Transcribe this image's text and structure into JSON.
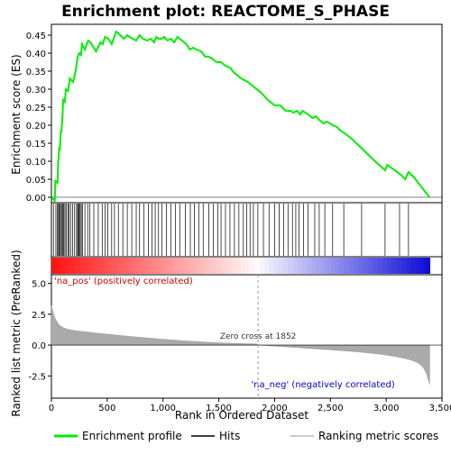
{
  "chart_data": {
    "type": "line",
    "title": "Enrichment plot: REACTOME_S_PHASE",
    "xlabel": "Rank in Ordered Dataset",
    "ylabel_top": "Enrichment score (ES)",
    "ylabel_bottom": "Ranked list metric (PreRanked)",
    "x_ticks": [
      "0",
      "500",
      "1,000",
      "1,500",
      "2,000",
      "2,500",
      "3,000",
      "3,500"
    ],
    "x_tick_values": [
      0,
      500,
      1000,
      1500,
      2000,
      2500,
      3000,
      3500
    ],
    "xlim": [
      0,
      3500
    ],
    "es_yticks": [
      "0.00",
      "0.05",
      "0.10",
      "0.15",
      "0.20",
      "0.25",
      "0.30",
      "0.35",
      "0.40",
      "0.45"
    ],
    "es_ytick_values": [
      0,
      0.05,
      0.1,
      0.15,
      0.2,
      0.25,
      0.3,
      0.35,
      0.4,
      0.45
    ],
    "es_ylim": [
      -0.015,
      0.48
    ],
    "rank_yticks": [
      "5.0",
      "2.5",
      "0.0",
      "-2.5"
    ],
    "rank_ytick_values": [
      5,
      2.5,
      0,
      -2.5
    ],
    "rank_ylim": [
      -4.3,
      5.7
    ],
    "es_series": {
      "name": "Enrichment profile",
      "color": "#00ee00",
      "x": [
        0,
        30,
        35,
        55,
        60,
        70,
        75,
        85,
        90,
        100,
        105,
        120,
        130,
        150,
        165,
        195,
        220,
        235,
        250,
        265,
        275,
        300,
        330,
        350,
        400,
        440,
        460,
        480,
        510,
        540,
        580,
        600,
        650,
        680,
        700,
        760,
        790,
        820,
        860,
        890,
        920,
        940,
        960,
        990,
        1010,
        1040,
        1070,
        1100,
        1130,
        1170,
        1210,
        1240,
        1270,
        1300,
        1340,
        1380,
        1410,
        1440,
        1480,
        1520,
        1560,
        1600,
        1640,
        1700,
        1760,
        1820,
        1880,
        1940,
        2000,
        2050,
        2100,
        2140,
        2170,
        2200,
        2230,
        2250,
        2300,
        2340,
        2370,
        2400,
        2440,
        2470,
        2520,
        2560,
        2590,
        2640,
        2700,
        2800,
        2900,
        2990,
        3010,
        3030,
        3100,
        3140,
        3170,
        3200,
        3250,
        3300,
        3350,
        3390
      ],
      "y": [
        0.0,
        -0.01,
        0.045,
        0.04,
        0.09,
        0.14,
        0.13,
        0.185,
        0.18,
        0.23,
        0.27,
        0.265,
        0.3,
        0.295,
        0.33,
        0.32,
        0.355,
        0.39,
        0.4,
        0.395,
        0.425,
        0.41,
        0.435,
        0.43,
        0.405,
        0.43,
        0.425,
        0.445,
        0.44,
        0.425,
        0.46,
        0.455,
        0.44,
        0.45,
        0.445,
        0.435,
        0.45,
        0.44,
        0.435,
        0.44,
        0.43,
        0.445,
        0.44,
        0.44,
        0.445,
        0.435,
        0.44,
        0.43,
        0.445,
        0.435,
        0.425,
        0.41,
        0.415,
        0.41,
        0.405,
        0.39,
        0.39,
        0.385,
        0.375,
        0.375,
        0.365,
        0.36,
        0.345,
        0.33,
        0.32,
        0.305,
        0.29,
        0.27,
        0.255,
        0.255,
        0.24,
        0.24,
        0.235,
        0.24,
        0.23,
        0.24,
        0.23,
        0.22,
        0.225,
        0.215,
        0.205,
        0.21,
        0.2,
        0.195,
        0.185,
        0.175,
        0.16,
        0.13,
        0.1,
        0.075,
        0.09,
        0.085,
        0.07,
        0.06,
        0.05,
        0.07,
        0.055,
        0.035,
        0.015,
        0.0
      ]
    },
    "hits": [
      18,
      40,
      52,
      63,
      70,
      78,
      88,
      96,
      104,
      112,
      122,
      135,
      148,
      158,
      172,
      190,
      208,
      225,
      235,
      242,
      250,
      258,
      268,
      280,
      300,
      325,
      345,
      380,
      420,
      455,
      480,
      505,
      540,
      565,
      600,
      640,
      680,
      720,
      760,
      790,
      830,
      870,
      900,
      930,
      960,
      990,
      1030,
      1070,
      1110,
      1150,
      1200,
      1245,
      1280,
      1320,
      1360,
      1410,
      1450,
      1490,
      1520,
      1560,
      1600,
      1640,
      1680,
      1720,
      1750,
      1780,
      1810,
      1850,
      1900,
      1950,
      2000,
      2040,
      2080,
      2120,
      2160,
      2190,
      2220,
      2260,
      2300,
      2360,
      2400,
      2450,
      2520,
      2620,
      2780,
      2990,
      3120,
      3200
    ],
    "zero_cross_label": "Zero cross at 1852",
    "zero_cross_x": 1852,
    "pos_label": "'na_pos' (positively correlated)",
    "neg_label": "'na_neg' (negatively correlated)",
    "pos_color": "#cc0000",
    "neg_color": "#0000cc",
    "legend": [
      {
        "name": "Enrichment profile",
        "color": "#00ee00"
      },
      {
        "name": "Hits",
        "color": "#000000"
      },
      {
        "name": "Ranking metric scores",
        "color": "#bbbbbb"
      }
    ],
    "legend_position": "bottom"
  }
}
